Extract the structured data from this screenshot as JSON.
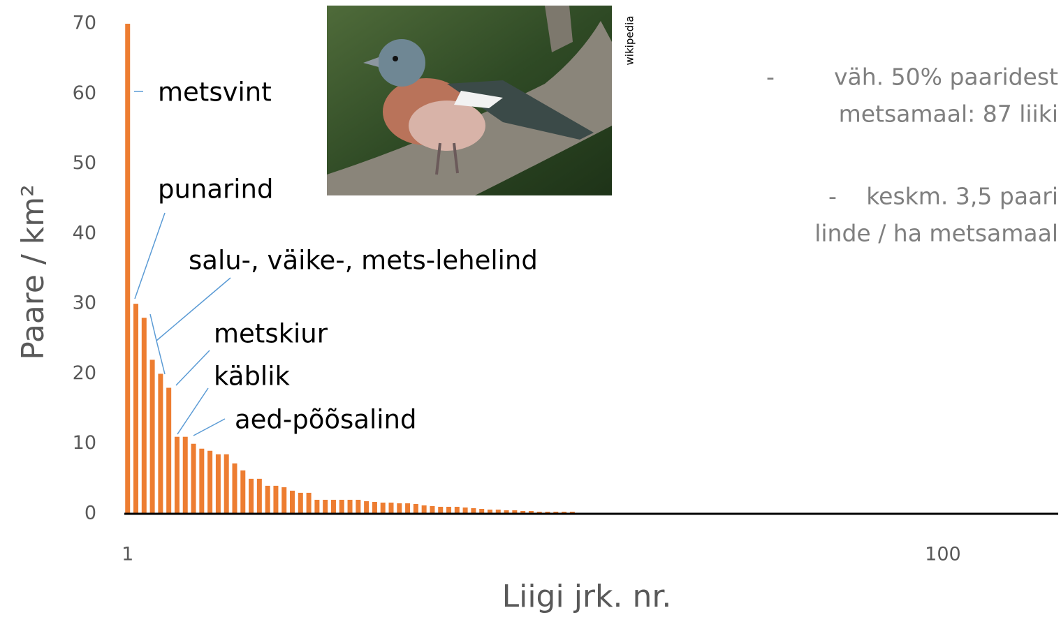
{
  "chart_data": {
    "type": "bar",
    "x": [
      1,
      2,
      3,
      4,
      5,
      6,
      7,
      8,
      9,
      10,
      11,
      12,
      13,
      14,
      15,
      16,
      17,
      18,
      19,
      20,
      21,
      22,
      23,
      24,
      25,
      26,
      27,
      28,
      29,
      30,
      31,
      32,
      33,
      34,
      35,
      36,
      37,
      38,
      39,
      40,
      41,
      42,
      43,
      44,
      45,
      46,
      47,
      48,
      49,
      50,
      51,
      52,
      53,
      54,
      55
    ],
    "values": [
      70,
      30,
      28,
      22,
      20,
      18,
      11,
      11,
      10,
      9.3,
      9,
      8.5,
      8.5,
      7.2,
      6.2,
      5,
      5,
      4,
      4,
      3.8,
      3.3,
      3,
      3,
      2,
      2,
      2,
      2,
      2,
      2,
      1.8,
      1.7,
      1.6,
      1.6,
      1.5,
      1.5,
      1.4,
      1.2,
      1.1,
      1,
      1,
      1,
      0.9,
      0.8,
      0.7,
      0.6,
      0.6,
      0.5,
      0.5,
      0.4,
      0.4,
      0.3,
      0.3,
      0.3,
      0.3,
      0.3
    ],
    "color": "#ed7d31",
    "xlim": [
      0.6,
      114
    ],
    "xticks": [
      1,
      100
    ],
    "ylim": [
      0,
      70
    ],
    "yticks": [
      0,
      10,
      20,
      30,
      40,
      50,
      60,
      70
    ],
    "x_label": "Liigi jrk. nr.",
    "y_label": "Paare / km²",
    "annotations": [
      "metsvint",
      "punarind",
      "salu-, väike-, mets-lehelind",
      "metskiur",
      "käblik",
      "aed-põõsalind"
    ],
    "image_credit": "wikipedia",
    "notes": [
      {
        "bullet": "-",
        "lines": [
          "väh. 50% paaridest",
          "metsamaal: 87 liiki"
        ]
      },
      {
        "bullet": "-",
        "lines": [
          "keskm. 3,5 paari",
          "linde / ha metsamaal"
        ]
      }
    ]
  }
}
